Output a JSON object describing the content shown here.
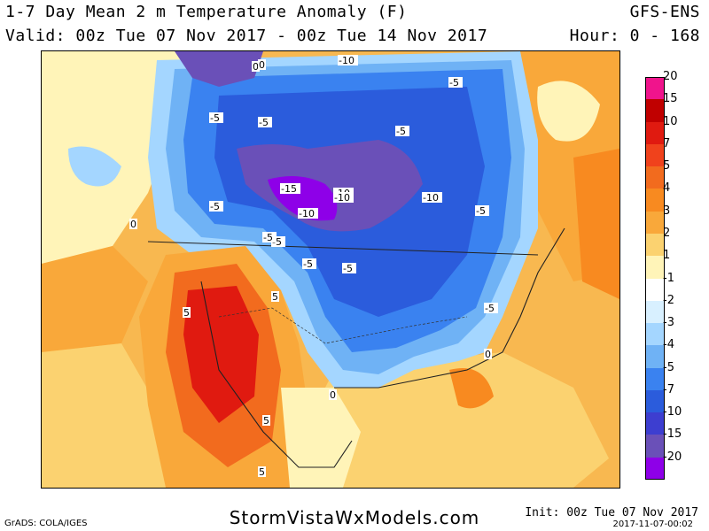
{
  "header": {
    "title": "1-7 Day Mean 2 m Temperature Anomaly (F)",
    "valid": "Valid: 00z Tue 07 Nov 2017 - 00z Tue 14 Nov 2017",
    "model": "GFS-ENS",
    "hour": "Hour: 0 - 168"
  },
  "map": {
    "variable": "2 m temperature anomaly",
    "units": "F",
    "region": "North America",
    "contour_labels": [
      "-5",
      "-5",
      "-10",
      "-5",
      "-5",
      "-5",
      "-5",
      "-5",
      "-10",
      "-10",
      "-15",
      "-10",
      "-10",
      "-5",
      "-5",
      "-5",
      "-5",
      "0",
      "0",
      "0",
      "5",
      "5",
      "5",
      "5",
      "0",
      "0"
    ]
  },
  "colorbar": {
    "ticks": [
      "20",
      "15",
      "10",
      "7",
      "5",
      "4",
      "3",
      "2",
      "1",
      "-1",
      "-2",
      "-3",
      "-4",
      "-5",
      "-7",
      "-10",
      "-15",
      "-20"
    ],
    "colors": [
      "#f0148c",
      "#c00000",
      "#e01a10",
      "#f0421c",
      "#f26b1e",
      "#f88a20",
      "#f9a83a",
      "#fbd270",
      "#fff4b8",
      "#ffffff",
      "#d8f0ff",
      "#a4d6ff",
      "#6fb2f5",
      "#3a82f0",
      "#2b5cdc",
      "#3d3ed0",
      "#6a50b8",
      "#8e00e8"
    ]
  },
  "footer": {
    "site": "StormVistaWxModels.com",
    "grads": "GrADS: COLA/IGES",
    "init": "Init: 00z Tue 07 Nov 2017",
    "stamp": "2017-11-07-00:02"
  }
}
